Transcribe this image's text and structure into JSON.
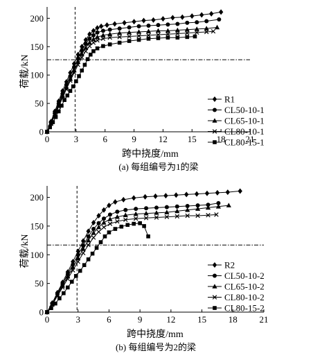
{
  "chart_data": [
    {
      "id": "a",
      "type": "line",
      "caption": "(a) 每组编号为1的梁",
      "xlabel": "跨中挠度/mm",
      "ylabel": "荷载/kN",
      "xlim": [
        0,
        21
      ],
      "ylim": [
        0,
        220
      ],
      "xticks": [
        0,
        3,
        6,
        9,
        12,
        15,
        18,
        21
      ],
      "yticks": [
        0,
        50,
        100,
        150,
        200
      ],
      "legend_position": "right",
      "reference_lines": {
        "x": 2.9,
        "y": 127
      },
      "series": [
        {
          "name": "R1",
          "marker": "diamond",
          "points": [
            [
              0,
              0
            ],
            [
              0.4,
              18
            ],
            [
              0.8,
              36
            ],
            [
              1.2,
              54
            ],
            [
              1.6,
              72
            ],
            [
              2.0,
              88
            ],
            [
              2.4,
              104
            ],
            [
              2.8,
              120
            ],
            [
              3.2,
              136
            ],
            [
              3.6,
              150
            ],
            [
              4.0,
              162
            ],
            [
              4.4,
              172
            ],
            [
              4.8,
              178
            ],
            [
              5.2,
              183
            ],
            [
              5.6,
              186
            ],
            [
              6.2,
              188
            ],
            [
              7.0,
              190
            ],
            [
              8.0,
              192
            ],
            [
              9.0,
              194
            ],
            [
              10.0,
              196
            ],
            [
              11.0,
              197
            ],
            [
              12.0,
              199
            ],
            [
              13.0,
              201
            ],
            [
              14.0,
              202
            ],
            [
              15.0,
              204
            ],
            [
              16.0,
              206
            ],
            [
              17.0,
              208
            ],
            [
              18.0,
              211
            ]
          ]
        },
        {
          "name": "CL50-10-1",
          "marker": "circle",
          "points": [
            [
              0,
              0
            ],
            [
              0.4,
              16
            ],
            [
              0.8,
              33
            ],
            [
              1.2,
              50
            ],
            [
              1.6,
              67
            ],
            [
              2.0,
              83
            ],
            [
              2.4,
              98
            ],
            [
              2.8,
              114
            ],
            [
              3.2,
              129
            ],
            [
              3.6,
              143
            ],
            [
              4.0,
              155
            ],
            [
              4.4,
              164
            ],
            [
              4.8,
              170
            ],
            [
              5.2,
              175
            ],
            [
              5.8,
              178
            ],
            [
              6.5,
              180
            ],
            [
              7.5,
              182
            ],
            [
              8.5,
              184
            ],
            [
              9.5,
              186
            ],
            [
              10.5,
              187
            ],
            [
              11.5,
              188
            ],
            [
              12.5,
              189
            ],
            [
              13.5,
              190
            ],
            [
              14.5,
              192
            ],
            [
              15.5,
              193
            ],
            [
              16.5,
              195
            ],
            [
              17.8,
              198
            ]
          ]
        },
        {
          "name": "CL65-10-1",
          "marker": "triangle",
          "points": [
            [
              0,
              0
            ],
            [
              0.4,
              15
            ],
            [
              0.8,
              31
            ],
            [
              1.2,
              47
            ],
            [
              1.6,
              63
            ],
            [
              2.0,
              78
            ],
            [
              2.4,
              93
            ],
            [
              2.8,
              108
            ],
            [
              3.2,
              123
            ],
            [
              3.6,
              137
            ],
            [
              4.0,
              148
            ],
            [
              4.4,
              157
            ],
            [
              4.8,
              163
            ],
            [
              5.2,
              167
            ],
            [
              5.8,
              170
            ],
            [
              6.5,
              172
            ],
            [
              7.5,
              174
            ],
            [
              8.5,
              175
            ],
            [
              9.5,
              176
            ],
            [
              10.5,
              177
            ],
            [
              11.5,
              178
            ],
            [
              12.5,
              178
            ],
            [
              13.5,
              179
            ],
            [
              14.5,
              180
            ],
            [
              15.5,
              181
            ],
            [
              16.5,
              182
            ],
            [
              17.6,
              184
            ]
          ]
        },
        {
          "name": "CL80-10-1",
          "marker": "x",
          "points": [
            [
              0,
              0
            ],
            [
              0.4,
              14
            ],
            [
              0.8,
              29
            ],
            [
              1.2,
              44
            ],
            [
              1.6,
              60
            ],
            [
              2.0,
              75
            ],
            [
              2.4,
              90
            ],
            [
              2.8,
              104
            ],
            [
              3.2,
              118
            ],
            [
              3.6,
              131
            ],
            [
              4.0,
              142
            ],
            [
              4.4,
              151
            ],
            [
              4.8,
              157
            ],
            [
              5.2,
              161
            ],
            [
              5.8,
              164
            ],
            [
              6.5,
              166
            ],
            [
              7.5,
              167
            ],
            [
              8.5,
              168
            ],
            [
              9.5,
              169
            ],
            [
              10.5,
              170
            ],
            [
              11.5,
              171
            ],
            [
              12.5,
              172
            ],
            [
              13.5,
              173
            ],
            [
              14.5,
              174
            ],
            [
              15.5,
              175
            ],
            [
              16.5,
              176
            ],
            [
              17.2,
              177
            ]
          ]
        },
        {
          "name": "CL80-15-1",
          "marker": "square",
          "points": [
            [
              0,
              0
            ],
            [
              0.3,
              8
            ],
            [
              0.6,
              17
            ],
            [
              0.9,
              26
            ],
            [
              1.2,
              36
            ],
            [
              1.5,
              46
            ],
            [
              1.8,
              56
            ],
            [
              2.1,
              64
            ],
            [
              2.4,
              72
            ],
            [
              2.7,
              80
            ],
            [
              3.0,
              89
            ],
            [
              3.3,
              98
            ],
            [
              3.6,
              108
            ],
            [
              3.9,
              118
            ],
            [
              4.2,
              128
            ],
            [
              4.5,
              136
            ],
            [
              4.8,
              142
            ],
            [
              5.2,
              147
            ],
            [
              5.8,
              151
            ],
            [
              6.5,
              154
            ],
            [
              7.5,
              157
            ],
            [
              8.5,
              160
            ],
            [
              9.5,
              162
            ],
            [
              10.5,
              164
            ],
            [
              11.5,
              165
            ],
            [
              12.5,
              166
            ],
            [
              13.5,
              166
            ],
            [
              14.5,
              167
            ],
            [
              15.3,
              168
            ]
          ]
        }
      ]
    },
    {
      "id": "b",
      "type": "line",
      "caption": "(b) 每组编号为2的梁",
      "xlabel": "跨中挠度/mm",
      "ylabel": "荷载/kN",
      "xlim": [
        0,
        21
      ],
      "ylim": [
        0,
        220
      ],
      "xticks": [
        0,
        3,
        6,
        9,
        12,
        15,
        18,
        21
      ],
      "yticks": [
        0,
        50,
        100,
        150,
        200
      ],
      "legend_position": "right",
      "reference_lines": {
        "x": 2.9,
        "y": 117
      },
      "series": [
        {
          "name": "R2",
          "marker": "diamond",
          "points": [
            [
              0,
              0
            ],
            [
              0.5,
              16
            ],
            [
              1.0,
              34
            ],
            [
              1.5,
              52
            ],
            [
              2.0,
              70
            ],
            [
              2.5,
              88
            ],
            [
              3.0,
              106
            ],
            [
              3.5,
              124
            ],
            [
              4.0,
              141
            ],
            [
              4.5,
              156
            ],
            [
              5.0,
              168
            ],
            [
              5.5,
              178
            ],
            [
              6.0,
              186
            ],
            [
              6.6,
              192
            ],
            [
              7.4,
              196
            ],
            [
              8.4,
              199
            ],
            [
              9.5,
              201
            ],
            [
              10.5,
              202
            ],
            [
              11.5,
              203
            ],
            [
              12.5,
              204
            ],
            [
              13.5,
              205
            ],
            [
              14.5,
              206
            ],
            [
              15.5,
              207
            ],
            [
              16.5,
              208
            ],
            [
              17.5,
              209
            ],
            [
              18.7,
              211
            ]
          ]
        },
        {
          "name": "CL50-10-2",
          "marker": "circle",
          "points": [
            [
              0,
              0
            ],
            [
              0.5,
              15
            ],
            [
              1.0,
              32
            ],
            [
              1.5,
              49
            ],
            [
              2.0,
              66
            ],
            [
              2.5,
              83
            ],
            [
              3.0,
              100
            ],
            [
              3.5,
              116
            ],
            [
              4.0,
              132
            ],
            [
              4.5,
              145
            ],
            [
              5.0,
              155
            ],
            [
              5.5,
              163
            ],
            [
              6.1,
              170
            ],
            [
              6.8,
              175
            ],
            [
              7.6,
              178
            ],
            [
              8.6,
              180
            ],
            [
              9.6,
              181
            ],
            [
              10.6,
              182
            ],
            [
              11.6,
              183
            ],
            [
              12.6,
              184
            ],
            [
              13.6,
              185
            ],
            [
              14.6,
              186
            ],
            [
              15.6,
              187
            ],
            [
              16.6,
              190
            ]
          ]
        },
        {
          "name": "CL65-10-2",
          "marker": "triangle",
          "points": [
            [
              0,
              0
            ],
            [
              0.5,
              14
            ],
            [
              1.0,
              30
            ],
            [
              1.5,
              46
            ],
            [
              2.0,
              62
            ],
            [
              2.5,
              78
            ],
            [
              3.0,
              94
            ],
            [
              3.5,
              110
            ],
            [
              4.0,
              125
            ],
            [
              4.5,
              138
            ],
            [
              5.0,
              148
            ],
            [
              5.5,
              156
            ],
            [
              6.1,
              162
            ],
            [
              6.8,
              166
            ],
            [
              7.6,
              169
            ],
            [
              8.6,
              171
            ],
            [
              9.6,
              172
            ],
            [
              10.6,
              173
            ],
            [
              11.6,
              174
            ],
            [
              12.6,
              176
            ],
            [
              13.6,
              178
            ],
            [
              14.6,
              180
            ],
            [
              15.6,
              182
            ],
            [
              16.6,
              184
            ],
            [
              17.6,
              186
            ]
          ]
        },
        {
          "name": "CL80-10-2",
          "marker": "x",
          "points": [
            [
              0,
              0
            ],
            [
              0.5,
              13
            ],
            [
              1.0,
              28
            ],
            [
              1.5,
              43
            ],
            [
              2.0,
              58
            ],
            [
              2.5,
              73
            ],
            [
              3.0,
              88
            ],
            [
              3.5,
              103
            ],
            [
              4.0,
              117
            ],
            [
              4.5,
              130
            ],
            [
              5.0,
              140
            ],
            [
              5.5,
              148
            ],
            [
              6.1,
              154
            ],
            [
              6.8,
              158
            ],
            [
              7.6,
              161
            ],
            [
              8.6,
              163
            ],
            [
              9.6,
              164
            ],
            [
              10.6,
              165
            ],
            [
              11.6,
              166
            ],
            [
              12.6,
              167
            ],
            [
              13.6,
              168
            ],
            [
              14.6,
              168
            ],
            [
              15.6,
              169
            ],
            [
              16.4,
              170
            ]
          ]
        },
        {
          "name": "CL80-15-2",
          "marker": "square",
          "points": [
            [
              0,
              0
            ],
            [
              0.4,
              7
            ],
            [
              0.8,
              15
            ],
            [
              1.2,
              24
            ],
            [
              1.6,
              33
            ],
            [
              2.0,
              43
            ],
            [
              2.4,
              53
            ],
            [
              2.8,
              63
            ],
            [
              3.2,
              72
            ],
            [
              3.6,
              82
            ],
            [
              4.0,
              92
            ],
            [
              4.4,
              102
            ],
            [
              4.8,
              112
            ],
            [
              5.2,
              122
            ],
            [
              5.6,
              132
            ],
            [
              6.0,
              139
            ],
            [
              6.6,
              145
            ],
            [
              7.2,
              149
            ],
            [
              7.8,
              152
            ],
            [
              8.4,
              154
            ],
            [
              9.0,
              155
            ],
            [
              9.4,
              150
            ],
            [
              9.8,
              132
            ]
          ]
        }
      ]
    }
  ]
}
